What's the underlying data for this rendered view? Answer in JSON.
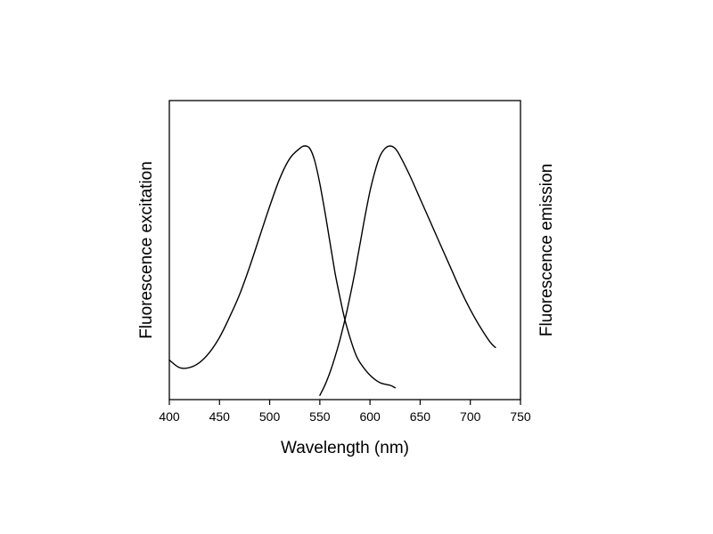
{
  "chart_data": {
    "type": "line",
    "xlabel": "Wavelength (nm)",
    "ylabel_left": "Fluorescence excitation",
    "ylabel_right": "Fluorescence emission",
    "xlim": [
      400,
      750
    ],
    "ylim": [
      0,
      1
    ],
    "xticks": [
      400,
      450,
      500,
      550,
      600,
      650,
      700,
      750
    ],
    "xtick_labels": [
      "400",
      "450",
      "500",
      "550",
      "600",
      "650",
      "700",
      "750"
    ],
    "y_ticks_shown": false,
    "grid": false,
    "legend": "none",
    "series": [
      {
        "role": "excitation",
        "x": [
          400,
          410,
          420,
          430,
          440,
          450,
          460,
          470,
          480,
          490,
          500,
          510,
          520,
          530,
          535,
          540,
          545,
          550,
          555,
          560,
          565,
          570,
          575,
          580,
          585,
          590,
          600,
          610,
          620,
          625
        ],
        "y": [
          0.15,
          0.12,
          0.12,
          0.14,
          0.18,
          0.24,
          0.32,
          0.41,
          0.52,
          0.64,
          0.76,
          0.87,
          0.95,
          0.99,
          1.0,
          0.99,
          0.94,
          0.85,
          0.74,
          0.62,
          0.5,
          0.4,
          0.31,
          0.24,
          0.18,
          0.14,
          0.09,
          0.06,
          0.05,
          0.04
        ]
      },
      {
        "role": "emission",
        "x": [
          550,
          555,
          560,
          565,
          570,
          575,
          580,
          585,
          590,
          595,
          600,
          605,
          610,
          615,
          620,
          625,
          630,
          640,
          650,
          660,
          670,
          680,
          690,
          700,
          710,
          720,
          725
        ],
        "y": [
          0.01,
          0.05,
          0.1,
          0.16,
          0.23,
          0.31,
          0.4,
          0.5,
          0.61,
          0.72,
          0.82,
          0.9,
          0.96,
          0.99,
          1.0,
          0.99,
          0.96,
          0.88,
          0.79,
          0.7,
          0.61,
          0.52,
          0.43,
          0.35,
          0.28,
          0.22,
          0.2
        ]
      }
    ]
  }
}
